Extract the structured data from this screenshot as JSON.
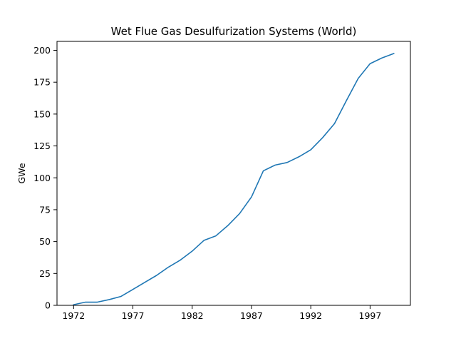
{
  "chart_data": {
    "type": "line",
    "title": "Wet Flue Gas Desulfurization Systems (World)",
    "xlabel": "",
    "ylabel": "GWe",
    "xlim": [
      1970.6,
      2000.4
    ],
    "ylim": [
      0,
      207
    ],
    "x_ticks": [
      1972,
      1977,
      1982,
      1987,
      1992,
      1997
    ],
    "y_ticks": [
      0,
      25,
      50,
      75,
      100,
      125,
      150,
      175,
      200
    ],
    "grid": false,
    "series": [
      {
        "name": "",
        "color": "#1f77b4",
        "x": [
          1972,
          1973,
          1974,
          1975,
          1976,
          1977,
          1978,
          1979,
          1980,
          1981,
          1982,
          1983,
          1984,
          1985,
          1986,
          1987,
          1988,
          1989,
          1990,
          1991,
          1992,
          1993,
          1994,
          1995,
          1996,
          1997,
          1998,
          1999
        ],
        "y": [
          0.5,
          2.5,
          2.5,
          4.5,
          7,
          12.5,
          18,
          23.5,
          30,
          35.5,
          42.5,
          51,
          54.5,
          62.5,
          72,
          85,
          105.5,
          110,
          112,
          116.5,
          122,
          131.5,
          142.5,
          160.5,
          178,
          189.5,
          194,
          197.5
        ]
      }
    ]
  }
}
